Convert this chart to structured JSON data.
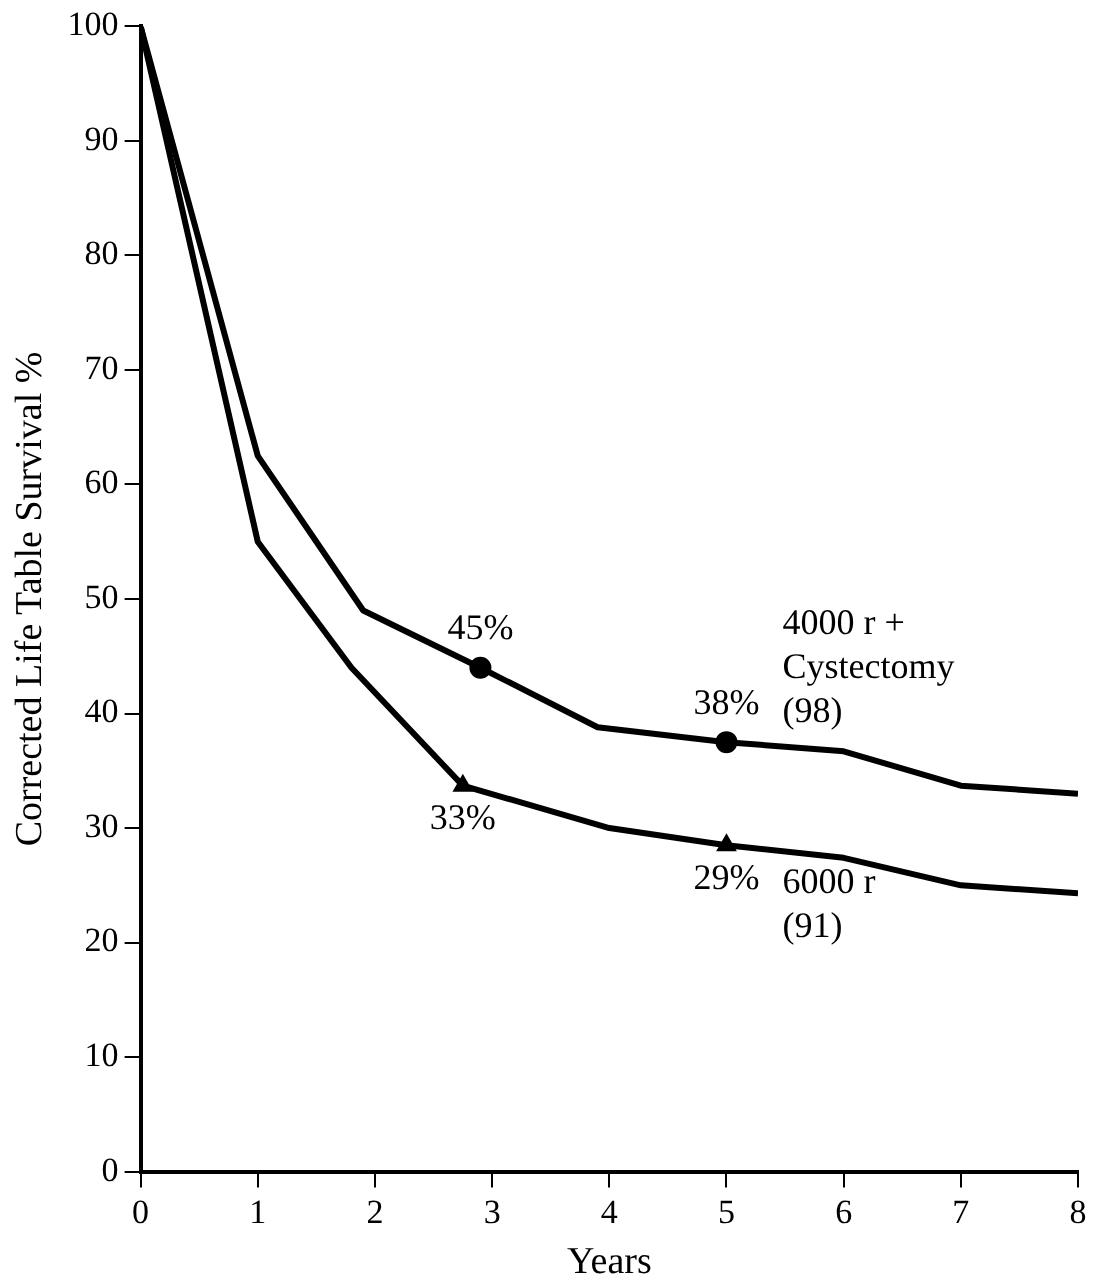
{
  "chart_data": {
    "type": "line",
    "xlabel": "Years",
    "ylabel": "Corrected Life Table Survival %",
    "xlim": [
      0,
      8
    ],
    "xticks": [
      0,
      1,
      2,
      3,
      4,
      5,
      6,
      7,
      8
    ],
    "ylim": [
      0,
      100
    ],
    "yticks": [
      0,
      10,
      20,
      30,
      40,
      50,
      60,
      70,
      80,
      90,
      100
    ],
    "grid": false,
    "legend": false,
    "marker": "none",
    "line_style": "solid",
    "series": [
      {
        "name": "4000 r +\nCystectomy\n(98)",
        "color": "#000000",
        "x": [
          0,
          1,
          1.9,
          2.9,
          3.9,
          5,
          6,
          7,
          8
        ],
        "values": [
          100,
          62.5,
          49,
          44,
          38.8,
          37.5,
          36.7,
          33.7,
          33
        ]
      },
      {
        "name": "6000 r\n(91)",
        "color": "#000000",
        "x": [
          0,
          1,
          1.8,
          2.75,
          4,
          5,
          6,
          7,
          8
        ],
        "values": [
          100,
          55,
          44,
          33.7,
          30,
          28.5,
          27.4,
          25,
          24.3
        ]
      },
      {
        "type": "scatter",
        "marker": "circle",
        "color": "#000000",
        "x": [
          2.9,
          5
        ],
        "values": [
          44,
          37.5
        ]
      },
      {
        "type": "scatter",
        "marker": "triangle",
        "color": "#000000",
        "x": [
          2.75,
          5
        ],
        "values": [
          33.7,
          28.5
        ]
      }
    ],
    "annotations": [
      {
        "text": "45%",
        "x": 2.9,
        "y": 44
      },
      {
        "text": "38%",
        "x": 5,
        "y": 37.5
      },
      {
        "text": "33%",
        "x": 2.75,
        "y": 33.7
      },
      {
        "text": "29%",
        "x": 5,
        "y": 28.5
      }
    ]
  }
}
